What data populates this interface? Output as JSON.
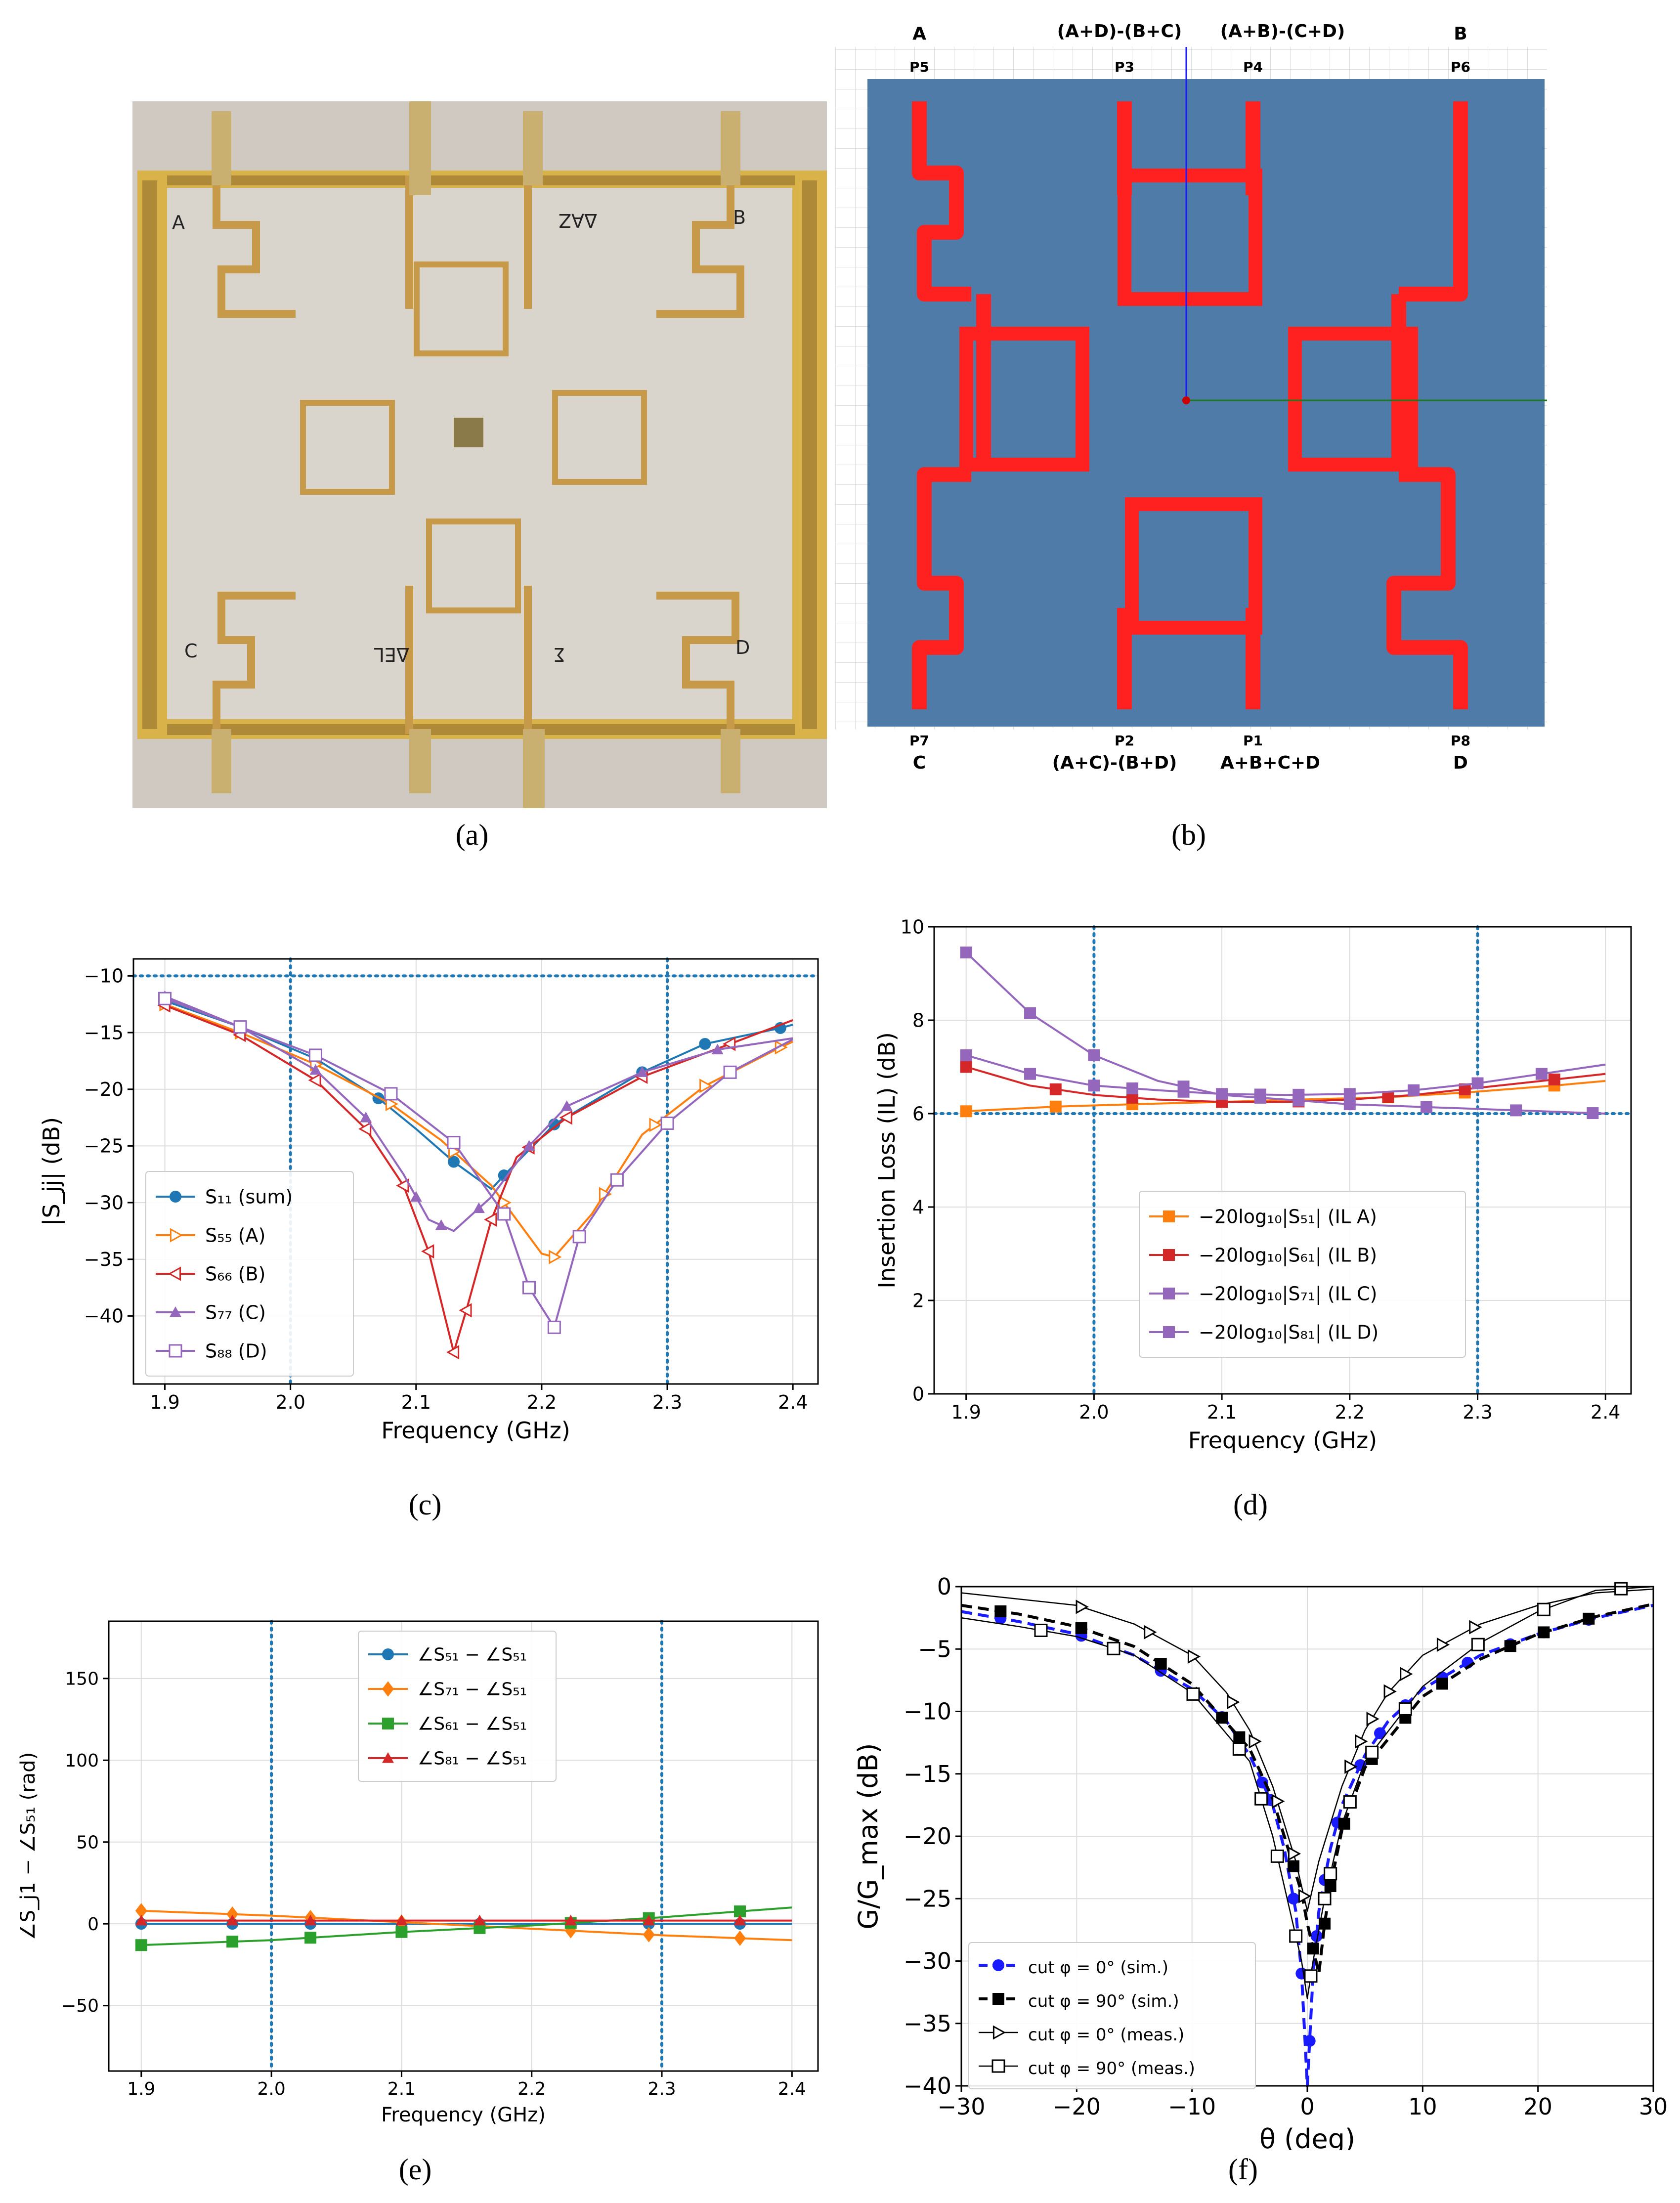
{
  "captions": {
    "a": "(a)",
    "b": "(b)",
    "c": "(c)",
    "d": "(d)",
    "e": "(e)",
    "f": "(f)"
  },
  "photo": {
    "labels": {
      "A": "A",
      "B": "B",
      "C": "C",
      "D": "D",
      "daz": "ΔAZ",
      "del": "ΔEL",
      "sum": "Σ"
    },
    "colors": {
      "pcb": "#d9b24a",
      "board": "#d8d3ca",
      "trace": "#c79a4a",
      "wall": "#b9a9a4"
    }
  },
  "layout": {
    "top_labels": {
      "A": "A",
      "p3sig": "(A+D)-(B+C)",
      "p4sig": "(A+B)-(C+D)",
      "B": "B"
    },
    "top_ports": {
      "P5": "P5",
      "P3": "P3",
      "P4": "P4",
      "P6": "P6"
    },
    "bottom_ports": {
      "P7": "P7",
      "P2": "P2",
      "P1": "P1",
      "P8": "P8"
    },
    "bottom_labels": {
      "C": "C",
      "p2sig": "(A+C)-(B+D)",
      "p1sig": "A+B+C+D",
      "D": "D"
    },
    "colors": {
      "substrate": "#4f7ba8",
      "trace": "#ff2020",
      "axis_y": "#1a1aff",
      "axis_x": "#1f7a1f"
    }
  },
  "chart_data": [
    {
      "id": "c",
      "type": "line",
      "xlabel": "Frequency (GHz)",
      "ylabel": "|S_jj| (dB)",
      "xlim": [
        1.875,
        2.42
      ],
      "ylim": [
        -46,
        -8.5
      ],
      "xticks": [
        1.9,
        2.0,
        2.1,
        2.2,
        2.3,
        2.4
      ],
      "xtick_labels": [
        "1.9",
        "2.0",
        "2.1",
        "2.2",
        "2.3",
        "2.4"
      ],
      "yticks": [
        -40,
        -35,
        -30,
        -25,
        -20,
        -15,
        -10
      ],
      "ytick_labels": [
        "−40",
        "−35",
        "−30",
        "−25",
        "−20",
        "−15",
        "−10"
      ],
      "hlines": [
        -10
      ],
      "vlines": [
        2.0,
        2.3
      ],
      "legend": {
        "position": "lower-left"
      },
      "series": [
        {
          "name": "S₁₁ (sum)",
          "color": "#1f77b4",
          "marker": "circle",
          "x": [
            1.9,
            1.96,
            2.02,
            2.07,
            2.1,
            2.13,
            2.16,
            2.17,
            2.21,
            2.28,
            2.33,
            2.39,
            2.4
          ],
          "y": [
            -12.2,
            -14.5,
            -17.3,
            -20.8,
            -23.5,
            -26.4,
            -28.8,
            -27.6,
            -23.1,
            -18.5,
            -16,
            -14.6,
            -14.3
          ],
          "marks": [
            1.9,
            1.96,
            2.07,
            2.13,
            2.17,
            2.21,
            2.28,
            2.33,
            2.39
          ]
        },
        {
          "name": "S₅₅ (A)",
          "color": "#ff7f0e",
          "marker": "tri-right",
          "x": [
            1.9,
            1.96,
            2.02,
            2.08,
            2.12,
            2.16,
            2.18,
            2.2,
            2.21,
            2.24,
            2.28,
            2.33,
            2.39,
            2.4
          ],
          "y": [
            -12.5,
            -15,
            -17.8,
            -21.3,
            -24.5,
            -28.5,
            -31.5,
            -34.5,
            -34.8,
            -31,
            -24,
            -19.7,
            -16.3,
            -15.8
          ],
          "marks": [
            1.9,
            1.96,
            2.02,
            2.08,
            2.13,
            2.17,
            2.21,
            2.25,
            2.29,
            2.33,
            2.39
          ]
        },
        {
          "name": "S₆₆ (B)",
          "color": "#d62728",
          "marker": "tri-left",
          "x": [
            1.9,
            1.96,
            2.02,
            2.06,
            2.09,
            2.11,
            2.13,
            2.14,
            2.16,
            2.18,
            2.22,
            2.28,
            2.35,
            2.4
          ],
          "y": [
            -12.6,
            -15.2,
            -19.2,
            -23.5,
            -28.5,
            -34.3,
            -43.2,
            -39.5,
            -31.5,
            -26,
            -22.5,
            -18.9,
            -16,
            -13.9
          ],
          "marks": [
            1.9,
            1.96,
            2.02,
            2.06,
            2.09,
            2.11,
            2.13,
            2.14,
            2.16,
            2.19,
            2.22,
            2.28,
            2.35
          ]
        },
        {
          "name": "S₇₇ (C)",
          "color": "#9467bd",
          "marker": "triangle",
          "x": [
            1.9,
            1.96,
            2.02,
            2.06,
            2.09,
            2.11,
            2.13,
            2.16,
            2.19,
            2.22,
            2.28,
            2.34,
            2.4
          ],
          "y": [
            -11.8,
            -14.5,
            -18.3,
            -22.5,
            -27.5,
            -31.5,
            -32.5,
            -29.5,
            -25,
            -21.5,
            -18.5,
            -16.5,
            -15.5
          ],
          "marks": [
            1.9,
            1.96,
            2.02,
            2.06,
            2.1,
            2.12,
            2.15,
            2.19,
            2.22,
            2.28,
            2.34
          ]
        },
        {
          "name": "S₈₈ (D)",
          "color": "#9467bd",
          "marker": "square-open",
          "x": [
            1.9,
            1.96,
            2.02,
            2.08,
            2.13,
            2.17,
            2.19,
            2.21,
            2.23,
            2.26,
            2.3,
            2.35,
            2.4
          ],
          "y": [
            -12,
            -14.5,
            -17,
            -20.4,
            -24.7,
            -31,
            -37.5,
            -41,
            -33,
            -28,
            -23,
            -18.5,
            -15.6
          ],
          "marks": [
            1.9,
            1.96,
            2.02,
            2.08,
            2.13,
            2.17,
            2.19,
            2.21,
            2.23,
            2.26,
            2.3,
            2.35
          ]
        }
      ]
    },
    {
      "id": "d",
      "type": "line",
      "xlabel": "Frequency (GHz)",
      "ylabel": "Insertion Loss (IL) (dB)",
      "xlim": [
        1.875,
        2.42
      ],
      "ylim": [
        0,
        10
      ],
      "xticks": [
        1.9,
        2.0,
        2.1,
        2.2,
        2.3,
        2.4
      ],
      "xtick_labels": [
        "1.9",
        "2.0",
        "2.1",
        "2.2",
        "2.3",
        "2.4"
      ],
      "yticks": [
        0,
        2,
        4,
        6,
        8,
        10
      ],
      "ytick_labels": [
        "0",
        "2",
        "4",
        "6",
        "8",
        "10"
      ],
      "hlines": [
        6.0
      ],
      "vlines": [
        2.0,
        2.3
      ],
      "legend": {
        "position": "lower-right"
      },
      "series": [
        {
          "name": "−20log₁₀|S₅₁| (IL A)",
          "color": "#ff7f0e",
          "marker": "square",
          "x": [
            1.9,
            1.97,
            2.03,
            2.1,
            2.16,
            2.23,
            2.29,
            2.36,
            2.4
          ],
          "y": [
            6.05,
            6.15,
            6.2,
            6.25,
            6.3,
            6.35,
            6.45,
            6.6,
            6.7
          ],
          "marks": [
            1.9,
            1.97,
            2.03,
            2.1,
            2.16,
            2.23,
            2.29,
            2.36
          ]
        },
        {
          "name": "−20log₁₀|S₆₁| (IL B)",
          "color": "#d62728",
          "marker": "square",
          "x": [
            1.9,
            1.95,
            2.0,
            2.05,
            2.1,
            2.15,
            2.2,
            2.25,
            2.3,
            2.35,
            2.4
          ],
          "y": [
            7.0,
            6.6,
            6.4,
            6.3,
            6.25,
            6.25,
            6.3,
            6.4,
            6.55,
            6.7,
            6.85
          ],
          "marks": [
            1.9,
            1.97,
            2.03,
            2.1,
            2.16,
            2.23,
            2.29,
            2.36
          ]
        },
        {
          "name": "−20log₁₀|S₇₁| (IL C)",
          "color": "#9467bd",
          "marker": "square",
          "x": [
            1.9,
            1.95,
            2.0,
            2.05,
            2.1,
            2.15,
            2.2,
            2.25,
            2.3,
            2.35,
            2.4
          ],
          "y": [
            7.25,
            6.85,
            6.6,
            6.5,
            6.42,
            6.4,
            6.42,
            6.5,
            6.65,
            6.85,
            7.05
          ],
          "marks": [
            1.9,
            1.95,
            2.0,
            2.03,
            2.07,
            2.1,
            2.13,
            2.16,
            2.2,
            2.25,
            2.3,
            2.35
          ]
        },
        {
          "name": "−20log₁₀|S₈₁| (IL D)",
          "color": "#9467bd",
          "marker": "square",
          "x": [
            1.9,
            1.95,
            2.0,
            2.05,
            2.1,
            2.15,
            2.2,
            2.25,
            2.3,
            2.35,
            2.4
          ],
          "y": [
            9.45,
            8.15,
            7.25,
            6.7,
            6.4,
            6.3,
            6.2,
            6.15,
            6.1,
            6.05,
            6.0
          ],
          "marks": [
            1.9,
            1.95,
            2.0,
            2.07,
            2.13,
            2.16,
            2.2,
            2.26,
            2.33,
            2.39
          ]
        }
      ]
    },
    {
      "id": "e",
      "type": "line",
      "xlabel": "Frequency (GHz)",
      "ylabel": "∠S_j1 − ∠S₅₁ (rad)",
      "xlim": [
        1.875,
        2.42
      ],
      "ylim": [
        -90,
        185
      ],
      "xticks": [
        1.9,
        2.0,
        2.1,
        2.2,
        2.3,
        2.4
      ],
      "xtick_labels": [
        "1.9",
        "2.0",
        "2.1",
        "2.2",
        "2.3",
        "2.4"
      ],
      "yticks": [
        -50,
        0,
        50,
        100,
        150
      ],
      "ytick_labels": [
        "−50",
        "0",
        "50",
        "100",
        "150"
      ],
      "hlines": [],
      "vlines": [
        2.0,
        2.3
      ],
      "legend": {
        "position": "top-center"
      },
      "series": [
        {
          "name": "∠S₅₁ − ∠S₅₁",
          "color": "#1f77b4",
          "marker": "circle",
          "x": [
            1.9,
            2.4
          ],
          "y": [
            0,
            0
          ],
          "marks": [
            1.9,
            1.97,
            2.03,
            2.1,
            2.16,
            2.23,
            2.29,
            2.36
          ]
        },
        {
          "name": "∠S₇₁ − ∠S₅₁",
          "color": "#ff7f0e",
          "marker": "diamond",
          "x": [
            1.9,
            2.0,
            2.1,
            2.2,
            2.3,
            2.4
          ],
          "y": [
            8,
            5,
            1,
            -3,
            -7,
            -10
          ],
          "marks": [
            1.9,
            1.97,
            2.03,
            2.1,
            2.16,
            2.23,
            2.29,
            2.36
          ]
        },
        {
          "name": "∠S₆₁ − ∠S₅₁",
          "color": "#2ca02c",
          "marker": "square",
          "x": [
            1.9,
            2.0,
            2.1,
            2.2,
            2.3,
            2.4
          ],
          "y": [
            -13,
            -10,
            -5,
            -1,
            4,
            10
          ],
          "marks": [
            1.9,
            1.97,
            2.03,
            2.1,
            2.16,
            2.23,
            2.29,
            2.36
          ]
        },
        {
          "name": "∠S₈₁ − ∠S₅₁",
          "color": "#d62728",
          "marker": "triangle",
          "x": [
            1.9,
            2.4
          ],
          "y": [
            2,
            2
          ],
          "marks": [
            1.9,
            1.97,
            2.03,
            2.1,
            2.16,
            2.23,
            2.29,
            2.36
          ]
        }
      ]
    },
    {
      "id": "f",
      "type": "line",
      "xlabel": "θ (deg)",
      "ylabel": "G/G_max (dB)",
      "xlim": [
        -30,
        30
      ],
      "ylim": [
        -40,
        0
      ],
      "xticks": [
        -30,
        -20,
        -10,
        0,
        10,
        20,
        30
      ],
      "xtick_labels": [
        "−30",
        "−20",
        "−10",
        "0",
        "10",
        "20",
        "30"
      ],
      "yticks": [
        -40,
        -35,
        -30,
        -25,
        -20,
        -15,
        -10,
        -5,
        0
      ],
      "ytick_labels": [
        "−40",
        "−35",
        "−30",
        "−25",
        "−20",
        "−15",
        "−10",
        "−5",
        "0"
      ],
      "hlines": [],
      "vlines": [],
      "legend": {
        "position": "lower-left"
      },
      "series": [
        {
          "name": "cut φ = 0° (sim.)",
          "color": "#1a1aff",
          "marker": "circle",
          "dash": "dashed",
          "x": [
            -30,
            -25,
            -20,
            -15,
            -10,
            -7,
            -5,
            -3,
            -2,
            -1,
            -0.5,
            0,
            0.5,
            1,
            2,
            3,
            5,
            7,
            10,
            15,
            20,
            25,
            30
          ],
          "y": [
            -2,
            -2.8,
            -3.8,
            -5.5,
            -8.2,
            -10.8,
            -13.5,
            -17.5,
            -21,
            -26,
            -31,
            -40,
            -31,
            -26,
            -21,
            -17.5,
            -13.5,
            -10.8,
            -8.2,
            -5.5,
            -3.8,
            -2.5,
            -1.5
          ],
          "marks": [
            -26.6,
            -19.6,
            -12.7,
            -7.4,
            -5.9,
            -3.9,
            -3.2,
            -1.2,
            -0.5,
            0.2,
            0.8,
            1.5,
            2.6,
            4.6,
            6.3,
            8.5,
            11.7,
            13.9,
            17.6,
            20.5,
            24.4
          ]
        },
        {
          "name": "cut φ = 90° (sim.)",
          "color": "#000000",
          "marker": "square",
          "dash": "dashed",
          "x": [
            -30,
            -25,
            -20,
            -15,
            -10,
            -5,
            -3,
            -1.5,
            -0.5,
            0,
            0.5,
            1,
            1.5,
            2,
            3,
            5,
            10,
            15,
            20,
            25,
            30
          ],
          "y": [
            -1.5,
            -2.2,
            -3.2,
            -4.8,
            -7.8,
            -13,
            -17,
            -21.5,
            -24.5,
            -27,
            -29,
            -31,
            -27,
            -24,
            -19.5,
            -14.5,
            -8.8,
            -5.8,
            -3.8,
            -2.4,
            -1.4
          ],
          "marks": [
            -26.6,
            -19.6,
            -12.7,
            -7.4,
            -5.9,
            -1.2,
            0.5,
            1.5,
            2,
            3.2,
            5.6,
            8.5,
            11.7,
            17.6,
            20.5,
            24.4
          ]
        },
        {
          "name": "cut φ = 0° (meas.)",
          "color": "#000000",
          "marker": "tri-right-open",
          "dash": "solid",
          "x": [
            -30,
            -20,
            -15,
            -10,
            -7,
            -5,
            -3,
            -1,
            0,
            1,
            3,
            5,
            7,
            10,
            15,
            20,
            25,
            30
          ],
          "y": [
            -0.5,
            -1.5,
            -3,
            -5.5,
            -8.5,
            -11.5,
            -16,
            -22,
            -26,
            -22,
            -16,
            -11.5,
            -8.5,
            -5.5,
            -3,
            -1.5,
            -0.5,
            -0.2
          ],
          "marks": [
            -19.6,
            -13.7,
            -9.9,
            -6.5,
            -4.6,
            -2.6,
            -1.2,
            -0.3,
            3.7,
            4.6,
            5.6,
            7.1,
            8.5,
            11.7,
            14.5
          ]
        },
        {
          "name": "cut φ = 90° (meas.)",
          "color": "#000000",
          "marker": "square-open",
          "dash": "solid",
          "x": [
            -30,
            -25,
            -20,
            -15,
            -10,
            -5,
            -3,
            -1.5,
            -0.5,
            0,
            0.5,
            1.5,
            3,
            5,
            10,
            15,
            20,
            25,
            30
          ],
          "y": [
            -2.5,
            -3.2,
            -4,
            -5.5,
            -8.5,
            -14,
            -20,
            -26,
            -30,
            -33,
            -30,
            -25,
            -19,
            -14,
            -8,
            -4.5,
            -2,
            -0.3,
            0
          ],
          "marks": [
            -23.1,
            -16.8,
            -9.9,
            -5.9,
            -4,
            -2.6,
            -1,
            0.3,
            1.5,
            2,
            3.7,
            5.6,
            8.5,
            14.8,
            20.5,
            27.2
          ]
        }
      ]
    }
  ]
}
